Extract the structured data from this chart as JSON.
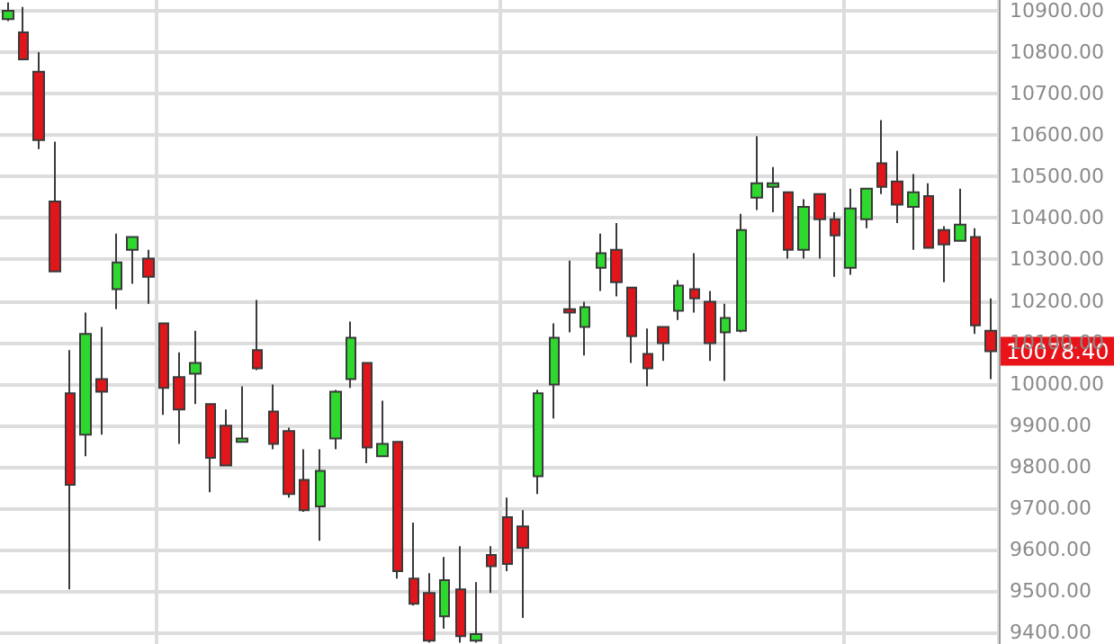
{
  "chart_data": {
    "type": "candlestick",
    "categories": [
      null,
      null,
      null,
      null,
      null,
      null,
      null,
      null,
      null,
      null,
      null,
      null,
      null,
      null,
      null,
      null,
      null,
      null,
      null,
      null,
      null,
      null,
      null,
      null,
      null,
      null,
      null,
      null,
      null,
      null,
      null,
      null,
      null,
      null,
      null,
      null,
      null,
      null,
      null,
      null,
      null,
      null,
      null,
      null,
      null,
      null,
      null,
      null,
      null,
      null,
      null,
      null,
      null,
      null,
      null,
      null,
      null,
      null,
      null,
      null,
      null,
      null,
      null,
      null
    ],
    "ohlc": [
      [
        10880,
        10920,
        10875,
        10900
      ],
      [
        10848,
        10909,
        10783,
        10783
      ],
      [
        10753,
        10800,
        10566,
        10588
      ],
      [
        10440,
        10584,
        10271,
        10271
      ],
      [
        9977,
        10081,
        9504,
        9756
      ],
      [
        9877,
        10172,
        9825,
        10120
      ],
      [
        10011,
        10137,
        9877,
        9981
      ],
      [
        10228,
        10362,
        10180,
        10293
      ],
      [
        10323,
        10354,
        10241,
        10354
      ],
      [
        10302,
        10323,
        10193,
        10258
      ],
      [
        10146,
        10146,
        9925,
        9990
      ],
      [
        10016,
        10076,
        9855,
        9938
      ],
      [
        10024,
        10128,
        9951,
        10050
      ],
      [
        9951,
        9951,
        9738,
        9821
      ],
      [
        9899,
        9938,
        9803,
        9803
      ],
      [
        9860,
        9994,
        9860,
        9868
      ],
      [
        10081,
        10202,
        10033,
        10037
      ],
      [
        9933,
        9998,
        9842,
        9855
      ],
      [
        9886,
        9894,
        9725,
        9734
      ],
      [
        9768,
        9842,
        9691,
        9695
      ],
      [
        9704,
        9842,
        9621,
        9790
      ],
      [
        9868,
        9985,
        9842,
        9981
      ],
      [
        10011,
        10150,
        9990,
        10111
      ],
      [
        10050,
        10050,
        9808,
        9846
      ],
      [
        9825,
        9959,
        9825,
        9855
      ],
      [
        9860,
        9860,
        9530,
        9548
      ],
      [
        9530,
        9665,
        9465,
        9469
      ],
      [
        9495,
        9543,
        9375,
        9380
      ],
      [
        9439,
        9582,
        9409,
        9526
      ],
      [
        9504,
        9608,
        9375,
        9391
      ],
      [
        9380,
        9521,
        9375,
        9396
      ],
      [
        9587,
        9608,
        9495,
        9560
      ],
      [
        9678,
        9725,
        9548,
        9565
      ],
      [
        9656,
        9695,
        9435,
        9604
      ],
      [
        9777,
        9985,
        9734,
        9977
      ],
      [
        9998,
        10146,
        9916,
        10111
      ],
      [
        10180,
        10297,
        10124,
        10172
      ],
      [
        10137,
        10198,
        10068,
        10185
      ],
      [
        10280,
        10362,
        10224,
        10315
      ],
      [
        10323,
        10388,
        10211,
        10245
      ],
      [
        10232,
        10232,
        10050,
        10115
      ],
      [
        10072,
        10133,
        9994,
        10037
      ],
      [
        10137,
        10137,
        10055,
        10098
      ],
      [
        10176,
        10250,
        10154,
        10237
      ],
      [
        10228,
        10315,
        10172,
        10206
      ],
      [
        10198,
        10224,
        10055,
        10098
      ],
      [
        10124,
        10193,
        10007,
        10159
      ],
      [
        10128,
        10410,
        10124,
        10371
      ],
      [
        10449,
        10597,
        10419,
        10484
      ],
      [
        10475,
        10523,
        10414,
        10484
      ],
      [
        10462,
        10462,
        10302,
        10323
      ],
      [
        10323,
        10445,
        10302,
        10427
      ],
      [
        10458,
        10458,
        10302,
        10397
      ],
      [
        10397,
        10414,
        10258,
        10358
      ],
      [
        10280,
        10471,
        10263,
        10423
      ],
      [
        10397,
        10471,
        10375,
        10471
      ],
      [
        10532,
        10636,
        10458,
        10475
      ],
      [
        10488,
        10562,
        10388,
        10432
      ],
      [
        10427,
        10506,
        10323,
        10462
      ],
      [
        10453,
        10484,
        10328,
        10328
      ],
      [
        10371,
        10380,
        10245,
        10336
      ],
      [
        10345,
        10471,
        10345,
        10384
      ],
      [
        10354,
        10375,
        10120,
        10141
      ],
      [
        10128,
        10206,
        10011,
        10078.4
      ]
    ],
    "colors": [
      "#2ed82e",
      "#e0161b",
      "#e0161b",
      "#e0161b",
      "#e0161b",
      "#2ed82e",
      "#e0161b",
      "#2ed82e",
      "#2ed82e",
      "#e0161b",
      "#e0161b",
      "#e0161b",
      "#2ed82e",
      "#e0161b",
      "#e0161b",
      "#2ed82e",
      "#e0161b",
      "#e0161b",
      "#e0161b",
      "#e0161b",
      "#2ed82e",
      "#2ed82e",
      "#2ed82e",
      "#e0161b",
      "#2ed82e",
      "#e0161b",
      "#e0161b",
      "#e0161b",
      "#2ed82e",
      "#e0161b",
      "#2ed82e",
      "#e0161b",
      "#e0161b",
      "#e0161b",
      "#2ed82e",
      "#2ed82e",
      "#e0161b",
      "#2ed82e",
      "#2ed82e",
      "#e0161b",
      "#e0161b",
      "#e0161b",
      "#e0161b",
      "#2ed82e",
      "#e0161b",
      "#e0161b",
      "#2ed82e",
      "#2ed82e",
      "#2ed82e",
      "#2ed82e",
      "#e0161b",
      "#2ed82e",
      "#e0161b",
      "#e0161b",
      "#2ed82e",
      "#2ed82e",
      "#e0161b",
      "#e0161b",
      "#2ed82e",
      "#e0161b",
      "#e0161b",
      "#2ed82e",
      "#e0161b",
      "#e0161b"
    ],
    "ylim": [
      9372,
      10926
    ],
    "yticks": [
      {
        "value": 9400,
        "label": "9400.00"
      },
      {
        "value": 9500,
        "label": "9500.00"
      },
      {
        "value": 9600,
        "label": "9600.00"
      },
      {
        "value": 9700,
        "label": "9700.00"
      },
      {
        "value": 9800,
        "label": "9800.00"
      },
      {
        "value": 9900,
        "label": "9900.00"
      },
      {
        "value": 10000,
        "label": "10000.00"
      },
      {
        "value": 10100,
        "label": "10100.00"
      },
      {
        "value": 10200,
        "label": "10200.00"
      },
      {
        "value": 10300,
        "label": "10300.00"
      },
      {
        "value": 10400,
        "label": "10400.00"
      },
      {
        "value": 10500,
        "label": "10500.00"
      },
      {
        "value": 10600,
        "label": "10600.00"
      },
      {
        "value": 10700,
        "label": "10700.00"
      },
      {
        "value": 10800,
        "label": "10800.00"
      },
      {
        "value": 10900,
        "label": "10900.00"
      }
    ],
    "annotations": [
      "10078.40"
    ],
    "grid": true,
    "tick_labels": "y"
  }
}
